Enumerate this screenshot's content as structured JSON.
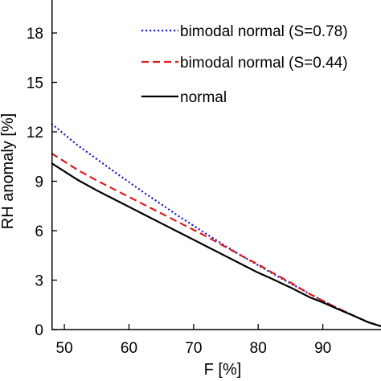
{
  "chart_data": {
    "type": "line",
    "xlabel": "F [%]",
    "ylabel": "RH anomaly [%]",
    "xlim": [
      48,
      99
    ],
    "ylim": [
      0,
      20
    ],
    "xticks": [
      50,
      60,
      70,
      80,
      90
    ],
    "yticks": [
      0,
      3,
      6,
      9,
      12,
      15,
      18
    ],
    "grid": false,
    "legend_position": "top-right",
    "series": [
      {
        "name": "bimodal normal (S=0.78)",
        "color": "#1f1fbf",
        "style": "dotted",
        "x": [
          48,
          50,
          52,
          55,
          58,
          60,
          62,
          65,
          68,
          70,
          72,
          75,
          78,
          80,
          82,
          85,
          88,
          90,
          92,
          95,
          97,
          99
        ],
        "y": [
          12.5,
          11.85,
          11.2,
          10.35,
          9.5,
          8.95,
          8.4,
          7.6,
          6.8,
          6.3,
          5.8,
          5.05,
          4.35,
          3.9,
          3.45,
          2.8,
          2.15,
          1.75,
          1.35,
          0.8,
          0.45,
          0.2
        ]
      },
      {
        "name": "bimodal normal (S=0.44)",
        "color": "#dd1c1c",
        "style": "dashed",
        "x": [
          48,
          50,
          52,
          55,
          58,
          60,
          62,
          65,
          68,
          70,
          72,
          75,
          78,
          80,
          82,
          85,
          88,
          90,
          92,
          95,
          97,
          99
        ],
        "y": [
          10.7,
          10.2,
          9.7,
          9.05,
          8.45,
          8.05,
          7.65,
          7.05,
          6.45,
          6.05,
          5.65,
          5.0,
          4.35,
          3.95,
          3.5,
          2.85,
          2.15,
          1.75,
          1.35,
          0.8,
          0.45,
          0.2
        ]
      },
      {
        "name": "normal",
        "color": "#000000",
        "style": "solid",
        "x": [
          48,
          50,
          52,
          55,
          58,
          60,
          62,
          65,
          68,
          70,
          72,
          75,
          78,
          80,
          82,
          85,
          88,
          90,
          92,
          95,
          97,
          99
        ],
        "y": [
          10.1,
          9.6,
          9.1,
          8.45,
          7.85,
          7.45,
          7.05,
          6.45,
          5.85,
          5.45,
          5.05,
          4.45,
          3.85,
          3.45,
          3.1,
          2.55,
          1.95,
          1.65,
          1.3,
          0.8,
          0.45,
          0.2
        ]
      }
    ]
  }
}
